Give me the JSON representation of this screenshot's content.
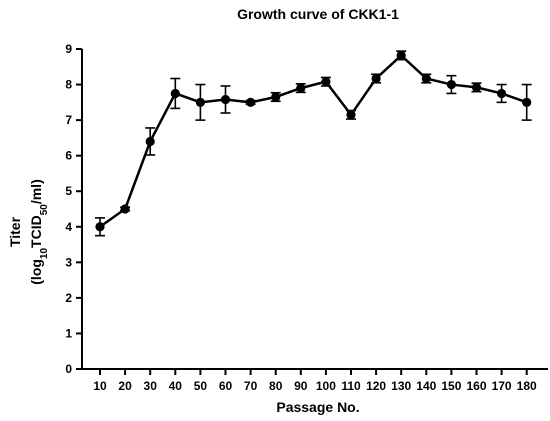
{
  "chart_data": {
    "type": "line",
    "title": "Growth curve of CKK1-1",
    "xlabel": "Passage No.",
    "ylabel_line1": "Titer",
    "ylabel_line2_prefix": "(log",
    "ylabel_line2_sub1": "10",
    "ylabel_line2_mid": "TCID",
    "ylabel_line2_sub2": "50",
    "ylabel_line2_suffix": "/ml)",
    "ylim": [
      0,
      9
    ],
    "yticks": [
      0,
      1,
      2,
      3,
      4,
      5,
      6,
      7,
      8,
      9
    ],
    "categories": [
      "10",
      "20",
      "30",
      "40",
      "50",
      "60",
      "70",
      "80",
      "90",
      "100",
      "110",
      "120",
      "130",
      "140",
      "150",
      "160",
      "170",
      "180"
    ],
    "values": [
      4.0,
      4.5,
      6.4,
      7.75,
      7.5,
      7.58,
      7.5,
      7.65,
      7.9,
      8.08,
      7.15,
      8.17,
      8.82,
      8.17,
      8.0,
      7.92,
      7.75,
      7.5
    ],
    "error": [
      0.25,
      0.05,
      0.38,
      0.42,
      0.5,
      0.38,
      0.05,
      0.12,
      0.12,
      0.12,
      0.12,
      0.12,
      0.12,
      0.12,
      0.25,
      0.12,
      0.25,
      0.5
    ],
    "grid": false
  }
}
